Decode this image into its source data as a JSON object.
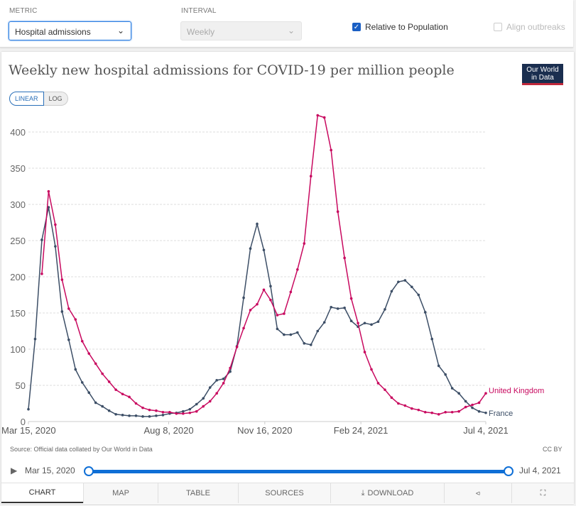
{
  "controls": {
    "metric_label": "METRIC",
    "metric_value": "Hospital admissions",
    "interval_label": "INTERVAL",
    "interval_value": "Weekly",
    "relative_label": "Relative to Population",
    "relative_checked": true,
    "align_label": "Align outbreaks",
    "align_checked": false
  },
  "logo": {
    "line1": "Our World",
    "line2": "in Data"
  },
  "scale": {
    "linear": "LINEAR",
    "log": "LOG"
  },
  "footer": {
    "source": "Source: Official data collated by Our World in Data",
    "license": "CC BY"
  },
  "timeline": {
    "start": "Mar 15, 2020",
    "end": "Jul 4, 2021"
  },
  "tabs": {
    "chart": "CHART",
    "map": "MAP",
    "table": "TABLE",
    "sources": "SOURCES",
    "download": "DOWNLOAD"
  },
  "chart_data": {
    "type": "line",
    "title": "Weekly new hospital admissions for COVID-19 per million people",
    "xlabel": "",
    "ylabel": "",
    "ylim": [
      0,
      400
    ],
    "yticks": [
      0,
      50,
      100,
      150,
      200,
      250,
      300,
      350,
      400
    ],
    "x_start": "2020-03-15",
    "x_step_days": 7,
    "x_end": "2021-07-04",
    "xticks": [
      {
        "label": "Mar 15, 2020",
        "day": 0
      },
      {
        "label": "Aug 8, 2020",
        "day": 146
      },
      {
        "label": "Nov 16, 2020",
        "day": 246
      },
      {
        "label": "Feb 24, 2021",
        "day": 346
      },
      {
        "label": "Jul 4, 2021",
        "day": 476
      }
    ],
    "grid": true,
    "series": [
      {
        "name": "France",
        "color": "#3c4e66",
        "start_index": 0,
        "values": [
          17,
          114,
          251,
          296,
          242,
          152,
          113,
          72,
          54,
          40,
          26,
          21,
          15,
          10,
          9,
          8,
          8,
          7,
          7,
          8,
          9,
          11,
          12,
          14,
          17,
          24,
          32,
          47,
          57,
          59,
          69,
          104,
          171,
          239,
          273,
          237,
          187,
          128,
          120,
          120,
          123,
          108,
          106,
          125,
          137,
          158,
          156,
          157,
          139,
          131,
          136,
          134,
          138,
          155,
          180,
          193,
          195,
          186,
          175,
          151,
          114,
          77,
          65,
          46,
          39,
          28,
          19,
          14,
          12
        ]
      },
      {
        "name": "United Kingdom",
        "color": "#c8095f",
        "start_index": 2,
        "values": [
          204,
          318,
          272,
          196,
          156,
          141,
          111,
          94,
          80,
          66,
          55,
          44,
          38,
          34,
          25,
          19,
          16,
          15,
          13,
          13,
          11,
          11,
          12,
          14,
          21,
          28,
          39,
          53,
          74,
          103,
          129,
          154,
          162,
          182,
          168,
          147,
          149,
          179,
          210,
          246,
          339,
          423,
          420,
          375,
          290,
          226,
          170,
          136,
          96,
          72,
          53,
          44,
          33,
          25,
          22,
          18,
          16,
          13,
          12,
          10,
          13,
          13,
          14,
          20,
          23,
          26,
          39
        ]
      }
    ]
  }
}
